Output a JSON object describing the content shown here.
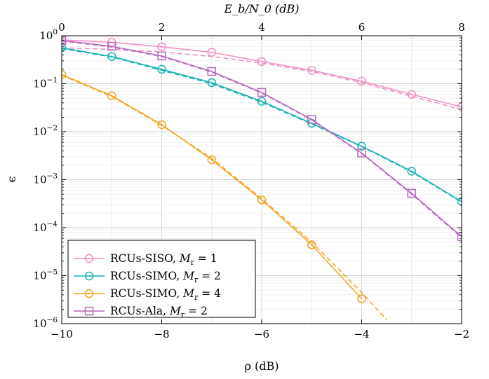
{
  "chart_data": {
    "type": "line",
    "xlabel": "ρ (dB)",
    "ylabel": "ϵ",
    "top_xlabel": "E_b/N_0 (dB)",
    "xlim": [
      -10,
      -2
    ],
    "top_xlim": [
      0,
      8
    ],
    "ylim_log10": [
      -6,
      0
    ],
    "y_scale": "log",
    "grid": true,
    "legend_position": "bottom-left",
    "x_ticks": [
      {
        "v": -10,
        "label": "−10"
      },
      {
        "v": -8,
        "label": "−8"
      },
      {
        "v": -6,
        "label": "−6"
      },
      {
        "v": -4,
        "label": "−4"
      },
      {
        "v": -2,
        "label": "−2"
      }
    ],
    "top_ticks": [
      {
        "v": 0,
        "label": "0"
      },
      {
        "v": 2,
        "label": "2"
      },
      {
        "v": 4,
        "label": "4"
      },
      {
        "v": 6,
        "label": "6"
      },
      {
        "v": 8,
        "label": "8"
      }
    ],
    "y_ticks": [
      {
        "exp": 0,
        "base": "10",
        "sup": "0"
      },
      {
        "exp": -1,
        "base": "10",
        "sup": "−1"
      },
      {
        "exp": -2,
        "base": "10",
        "sup": "−2"
      },
      {
        "exp": -3,
        "base": "10",
        "sup": "−3"
      },
      {
        "exp": -4,
        "base": "10",
        "sup": "−4"
      },
      {
        "exp": -5,
        "base": "10",
        "sup": "−5"
      },
      {
        "exp": -6,
        "base": "10",
        "sup": "−6"
      }
    ],
    "series": [
      {
        "name": "RCUs-SISO, M_r = 1",
        "legend_main": "RCUs-SISO, ",
        "legend_var": "M",
        "legend_sub": "r",
        "legend_tail": " = 1",
        "color": "#f08cc4",
        "marker": "circle",
        "x": [
          -10,
          -9,
          -8,
          -7,
          -6,
          -5,
          -4,
          -3,
          -2
        ],
        "y": [
          0.82,
          0.73,
          0.59,
          0.45,
          0.29,
          0.19,
          0.113,
          0.06,
          0.033
        ],
        "approx": {
          "x": [
            -10,
            -9,
            -8,
            -7,
            -6,
            -5,
            -4,
            -3,
            -2
          ],
          "y": [
            0.56,
            0.52,
            0.46,
            0.37,
            0.27,
            0.18,
            0.105,
            0.055,
            0.029
          ]
        }
      },
      {
        "name": "RCUs-SIMO, M_r = 2",
        "legend_main": "RCUs-SIMO, ",
        "legend_var": "M",
        "legend_sub": "r",
        "legend_tail": " = 2",
        "color": "#17b3b5",
        "marker": "circle",
        "x": [
          -10,
          -9,
          -8,
          -7,
          -6,
          -5,
          -4,
          -3,
          -2
        ],
        "y": [
          0.56,
          0.37,
          0.2,
          0.105,
          0.043,
          0.015,
          0.005,
          0.0015,
          0.00035
        ],
        "approx": {
          "x": [
            -10,
            -9,
            -8,
            -7,
            -6,
            -5,
            -4,
            -3,
            -2
          ],
          "y": [
            0.54,
            0.36,
            0.19,
            0.1,
            0.041,
            0.0145,
            0.0049,
            0.00145,
            0.00034
          ]
        }
      },
      {
        "name": "RCUs-SIMO, M_r = 4",
        "legend_main": "RCUs-SIMO, ",
        "legend_var": "M",
        "legend_sub": "r",
        "legend_tail": " = 4",
        "color": "#f6a21c",
        "marker": "circle",
        "x": [
          -10,
          -9,
          -8,
          -7,
          -6,
          -5,
          -4
        ],
        "y": [
          0.155,
          0.056,
          0.014,
          0.0026,
          0.00038,
          4.4e-05,
          3.3e-06
        ],
        "approx": {
          "x": [
            -10,
            -9,
            -8,
            -7,
            -6,
            -5,
            -4,
            -3.5
          ],
          "y": [
            0.15,
            0.054,
            0.0135,
            0.0028,
            0.0004,
            5e-05,
            4.5e-06,
            1.2e-06
          ]
        }
      },
      {
        "name": "RCUs-Ala, M_r = 2",
        "legend_main": "RCUs-Ala, ",
        "legend_var": "M",
        "legend_sub": "r",
        "legend_tail": " = 2",
        "color": "#b56bbd",
        "marker": "square",
        "x": [
          -10,
          -9,
          -8,
          -7,
          -6,
          -5,
          -4,
          -3,
          -2
        ],
        "y": [
          0.8,
          0.6,
          0.38,
          0.18,
          0.066,
          0.018,
          0.0036,
          0.00052,
          6.5e-05
        ],
        "approx": {
          "x": [
            -10,
            -9,
            -8,
            -7,
            -6,
            -5,
            -4,
            -3,
            -2
          ],
          "y": [
            0.78,
            0.58,
            0.37,
            0.175,
            0.064,
            0.0176,
            0.0035,
            0.0005,
            6.2e-05
          ]
        }
      }
    ]
  }
}
